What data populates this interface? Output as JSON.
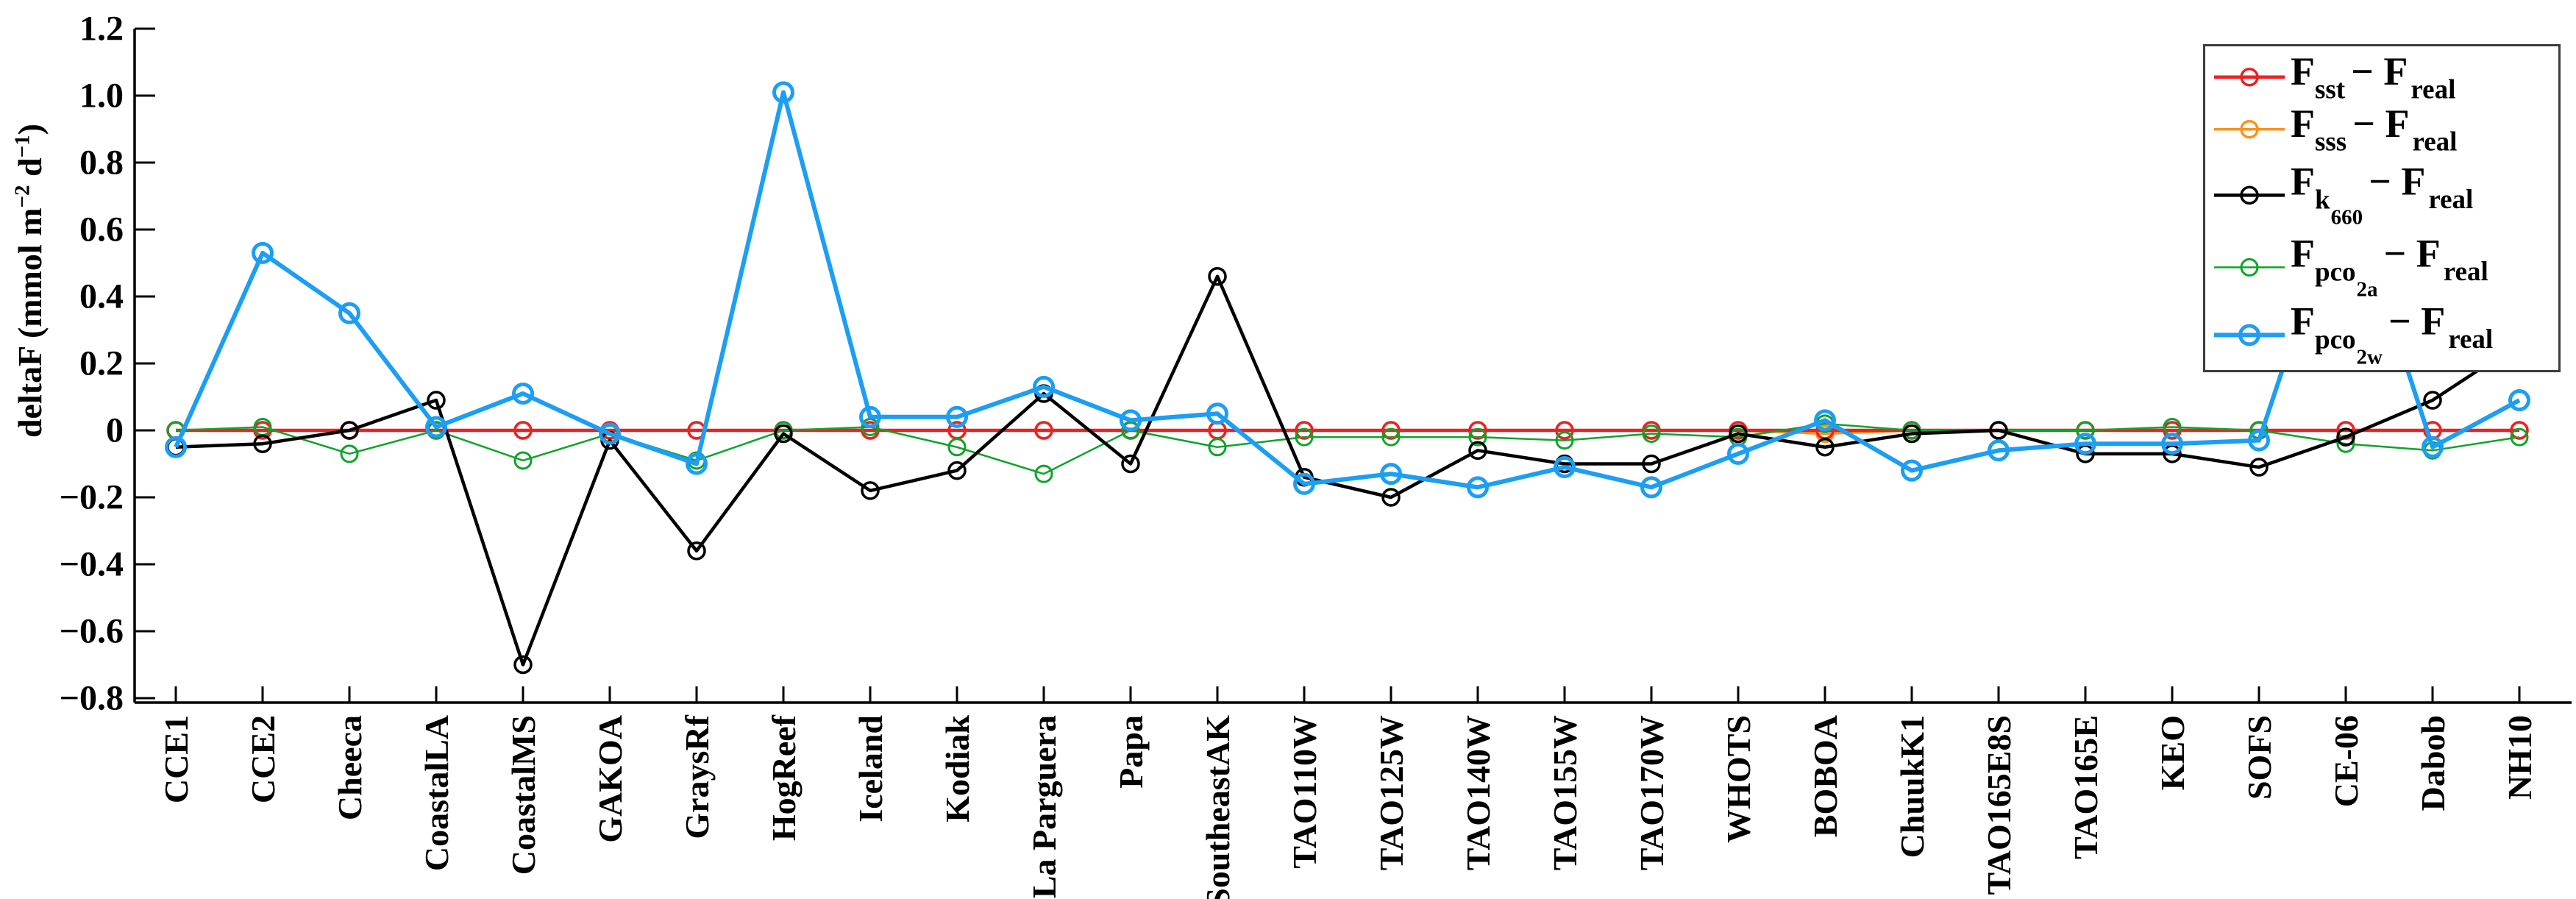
{
  "y_axis": {
    "label_parts": {
      "p1": "deltaF (mmol m",
      "s1": "−2",
      "p2": " d",
      "s2": "−1",
      "p3": ")"
    },
    "tick_labels": [
      "1.2",
      "1.0",
      "0.8",
      "0.6",
      "0.4",
      "0.2",
      "0",
      "−0.2",
      "−0.4",
      "−0.6",
      "−0.8"
    ],
    "tick_values": [
      1.2,
      1.0,
      0.8,
      0.6,
      0.4,
      0.2,
      0,
      -0.2,
      -0.4,
      -0.6,
      -0.8
    ]
  },
  "legend": {
    "items": [
      {
        "id": "f-sst-minus-f-real",
        "base": "F",
        "sub": "sst",
        "subsub": "",
        "minus": "− F",
        "sub2": "real",
        "color": "#ed2024"
      },
      {
        "id": "f-sss-minus-f-real",
        "base": "F",
        "sub": "sss",
        "subsub": "",
        "minus": "− F",
        "sub2": "real",
        "color": "#f8941d"
      },
      {
        "id": "f-k660-minus-f-real",
        "base": "F",
        "sub": "k",
        "subsub": "660",
        "minus": "− F",
        "sub2": "real",
        "color": "#000000"
      },
      {
        "id": "f-pco2a-minus-f-real",
        "base": "F",
        "sub": "pco",
        "subsub": "2a",
        "minus": "− F",
        "sub2": "real",
        "color": "#0fa32b"
      },
      {
        "id": "f-pco2w-minus-f-real",
        "base": "F",
        "sub": "pco",
        "subsub": "2w",
        "minus": "− F",
        "sub2": "real",
        "color": "#1c9ef4"
      }
    ]
  },
  "chart_data": {
    "type": "line",
    "title": "",
    "xlabel": "",
    "ylabel": "deltaF (mmol m^-2 d^-1)",
    "ylim": [
      -0.8,
      1.2
    ],
    "ytick_step": 0.2,
    "grid": false,
    "legend_position": "top-right",
    "categories": [
      "CCE1",
      "CCE2",
      "Cheeca",
      "CoastalLA",
      "CoastalMS",
      "GAKOA",
      "GraysRf",
      "HogReef",
      "Iceland",
      "Kodiak",
      "La Parguera",
      "Papa",
      "SoutheastAK",
      "TAO110W",
      "TAO125W",
      "TAO140W",
      "TAO155W",
      "TAO170W",
      "WHOTS",
      "BOBOA",
      "ChuukK1",
      "TAO165E8S",
      "TAO165E",
      "KEO",
      "SOFS",
      "CE-06",
      "Dabob",
      "NH10"
    ],
    "series": [
      {
        "name": "F_sst − F_real",
        "color": "#ed2024",
        "line_width": 4.5,
        "marker_radius": 11,
        "marker_stroke": 3.5,
        "values": [
          0,
          0,
          0,
          0,
          0,
          0,
          0,
          0,
          0,
          0,
          0,
          0,
          0,
          0,
          0,
          0,
          0,
          0,
          0,
          0,
          0,
          0,
          0,
          0,
          0,
          0,
          0,
          0
        ]
      },
      {
        "name": "F_sss − F_real",
        "color": "#f8941d",
        "line_width": 3.5,
        "marker_radius": 11,
        "marker_stroke": 3.5,
        "values": [
          0,
          0,
          0,
          0,
          0,
          0,
          0,
          0,
          0,
          0,
          0,
          0,
          0,
          0,
          0,
          0,
          0,
          0,
          0,
          -0.01,
          0,
          0,
          0,
          0,
          0,
          0,
          0,
          0
        ]
      },
      {
        "name": "F_k660 − F_real",
        "color": "#000000",
        "line_width": 4.5,
        "marker_radius": 11,
        "marker_stroke": 3.5,
        "values": [
          -0.05,
          -0.04,
          0,
          0.09,
          -0.7,
          -0.03,
          -0.36,
          -0.01,
          -0.18,
          -0.12,
          0.11,
          -0.1,
          0.46,
          -0.14,
          -0.2,
          -0.06,
          -0.1,
          -0.1,
          -0.01,
          -0.05,
          -0.01,
          0,
          -0.07,
          -0.07,
          -0.11,
          -0.02,
          0.09,
          0.26
        ]
      },
      {
        "name": "F_pco2a − F_real",
        "color": "#0fa32b",
        "line_width": 2.5,
        "marker_radius": 11,
        "marker_stroke": 3,
        "values": [
          0,
          0.01,
          -0.07,
          0,
          -0.09,
          -0.01,
          -0.09,
          0,
          0.01,
          -0.05,
          -0.13,
          0,
          -0.05,
          -0.02,
          -0.02,
          -0.02,
          -0.03,
          -0.01,
          -0.02,
          0.02,
          0,
          0,
          0,
          0.01,
          0,
          -0.04,
          -0.06,
          -0.02
        ]
      },
      {
        "name": "F_pco2w − F_real",
        "color": "#1c9ef4",
        "line_width": 6,
        "marker_radius": 12.5,
        "marker_stroke": 5,
        "values": [
          -0.05,
          0.53,
          0.35,
          0.01,
          0.11,
          -0.01,
          -0.1,
          1.01,
          0.04,
          0.04,
          0.13,
          0.03,
          0.05,
          -0.16,
          -0.13,
          -0.17,
          -0.11,
          -0.17,
          -0.07,
          0.03,
          -0.12,
          -0.06,
          -0.04,
          -0.04,
          -0.03,
          0.75,
          -0.05,
          0.09
        ]
      }
    ],
    "draw_order": [
      1,
      0,
      3,
      2,
      4
    ]
  }
}
